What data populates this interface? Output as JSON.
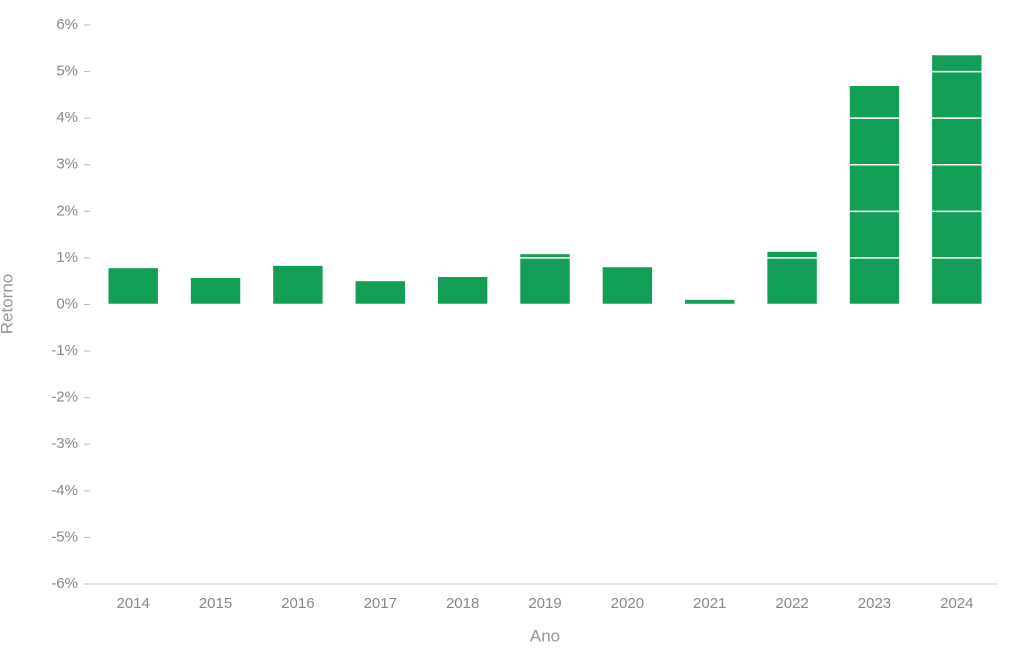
{
  "chart_data": {
    "type": "bar",
    "x_label": "Ano",
    "y_label": "Retorno",
    "categories": [
      "2014",
      "2015",
      "2016",
      "2017",
      "2018",
      "2019",
      "2020",
      "2021",
      "2022",
      "2023",
      "2024"
    ],
    "values": [
      0.78,
      0.57,
      0.83,
      0.5,
      0.59,
      1.08,
      0.8,
      0.1,
      1.13,
      4.69,
      5.35
    ],
    "color": "#129f55",
    "ylim": [
      -6,
      6
    ],
    "yticks": [
      {
        "value": -6,
        "label": "-6%"
      },
      {
        "value": -5,
        "label": "-5%"
      },
      {
        "value": -4,
        "label": "-4%"
      },
      {
        "value": -3,
        "label": "-3%"
      },
      {
        "value": -2,
        "label": "-2%"
      },
      {
        "value": -1,
        "label": "-1%"
      },
      {
        "value": 0,
        "label": "0%"
      },
      {
        "value": 1,
        "label": "1%"
      },
      {
        "value": 2,
        "label": "2%"
      },
      {
        "value": 3,
        "label": "3%"
      },
      {
        "value": 4,
        "label": "4%"
      },
      {
        "value": 5,
        "label": "5%"
      },
      {
        "value": 6,
        "label": "6%"
      }
    ],
    "grid": true
  }
}
